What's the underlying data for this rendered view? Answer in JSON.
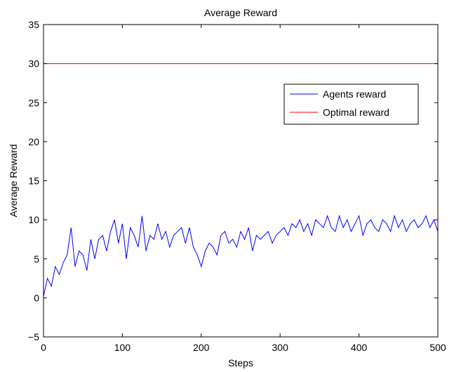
{
  "chart_data": {
    "type": "line",
    "title": "Average Reward",
    "xlabel": "Steps",
    "ylabel": "Average Reward",
    "xlim": [
      0,
      500
    ],
    "ylim": [
      -5,
      35
    ],
    "xticks": [
      0,
      100,
      200,
      300,
      400,
      500
    ],
    "yticks": [
      -5,
      0,
      5,
      10,
      15,
      20,
      25,
      30,
      35
    ],
    "xtick_labels": [
      "0",
      "100",
      "200",
      "300",
      "400",
      "500"
    ],
    "ytick_labels": [
      "−5",
      "0",
      "5",
      "10",
      "15",
      "20",
      "25",
      "30",
      "35"
    ],
    "grid": false,
    "legend_position": "upper-right",
    "series": [
      {
        "name": "Agents reward",
        "color": "#0000ff",
        "x": [
          0,
          5,
          10,
          15,
          20,
          25,
          30,
          35,
          40,
          45,
          50,
          55,
          60,
          65,
          70,
          75,
          80,
          85,
          90,
          95,
          100,
          105,
          110,
          115,
          120,
          125,
          130,
          135,
          140,
          145,
          150,
          155,
          160,
          165,
          170,
          175,
          180,
          185,
          190,
          195,
          200,
          205,
          210,
          215,
          220,
          225,
          230,
          235,
          240,
          245,
          250,
          255,
          260,
          265,
          270,
          275,
          280,
          285,
          290,
          295,
          300,
          305,
          310,
          315,
          320,
          325,
          330,
          335,
          340,
          345,
          350,
          355,
          360,
          365,
          370,
          375,
          380,
          385,
          390,
          395,
          400,
          405,
          410,
          415,
          420,
          425,
          430,
          435,
          440,
          445,
          450,
          455,
          460,
          465,
          470,
          475,
          480,
          485,
          490,
          495,
          500
        ],
        "y": [
          0.2,
          2.5,
          1.5,
          4.0,
          3.0,
          4.5,
          5.5,
          9.0,
          4.0,
          6.0,
          5.5,
          3.5,
          7.5,
          5.0,
          7.5,
          8.0,
          6.0,
          8.5,
          10.0,
          7.0,
          9.5,
          5.0,
          9.0,
          8.0,
          6.5,
          10.5,
          6.0,
          8.0,
          7.5,
          9.5,
          7.5,
          8.5,
          6.5,
          8.0,
          8.5,
          9.0,
          7.0,
          9.0,
          6.5,
          5.5,
          4.0,
          6.0,
          7.0,
          6.5,
          5.5,
          8.0,
          8.5,
          7.0,
          7.5,
          6.5,
          8.5,
          7.5,
          9.0,
          6.0,
          8.0,
          7.5,
          8.0,
          8.5,
          7.0,
          8.0,
          8.5,
          9.0,
          8.0,
          9.5,
          9.0,
          10.0,
          8.5,
          9.5,
          8.0,
          10.0,
          9.5,
          9.0,
          10.5,
          9.0,
          8.5,
          10.5,
          9.0,
          10.0,
          8.5,
          9.5,
          10.5,
          8.0,
          9.5,
          10.0,
          9.0,
          8.5,
          10.0,
          9.5,
          8.5,
          10.5,
          9.0,
          10.0,
          8.5,
          9.5,
          10.0,
          9.0,
          9.5,
          10.5,
          9.0,
          10.0,
          8.5
        ]
      },
      {
        "name": "Optimal reward",
        "color": "#ff0000",
        "x": [
          0,
          500
        ],
        "y": [
          30,
          30
        ]
      }
    ]
  }
}
